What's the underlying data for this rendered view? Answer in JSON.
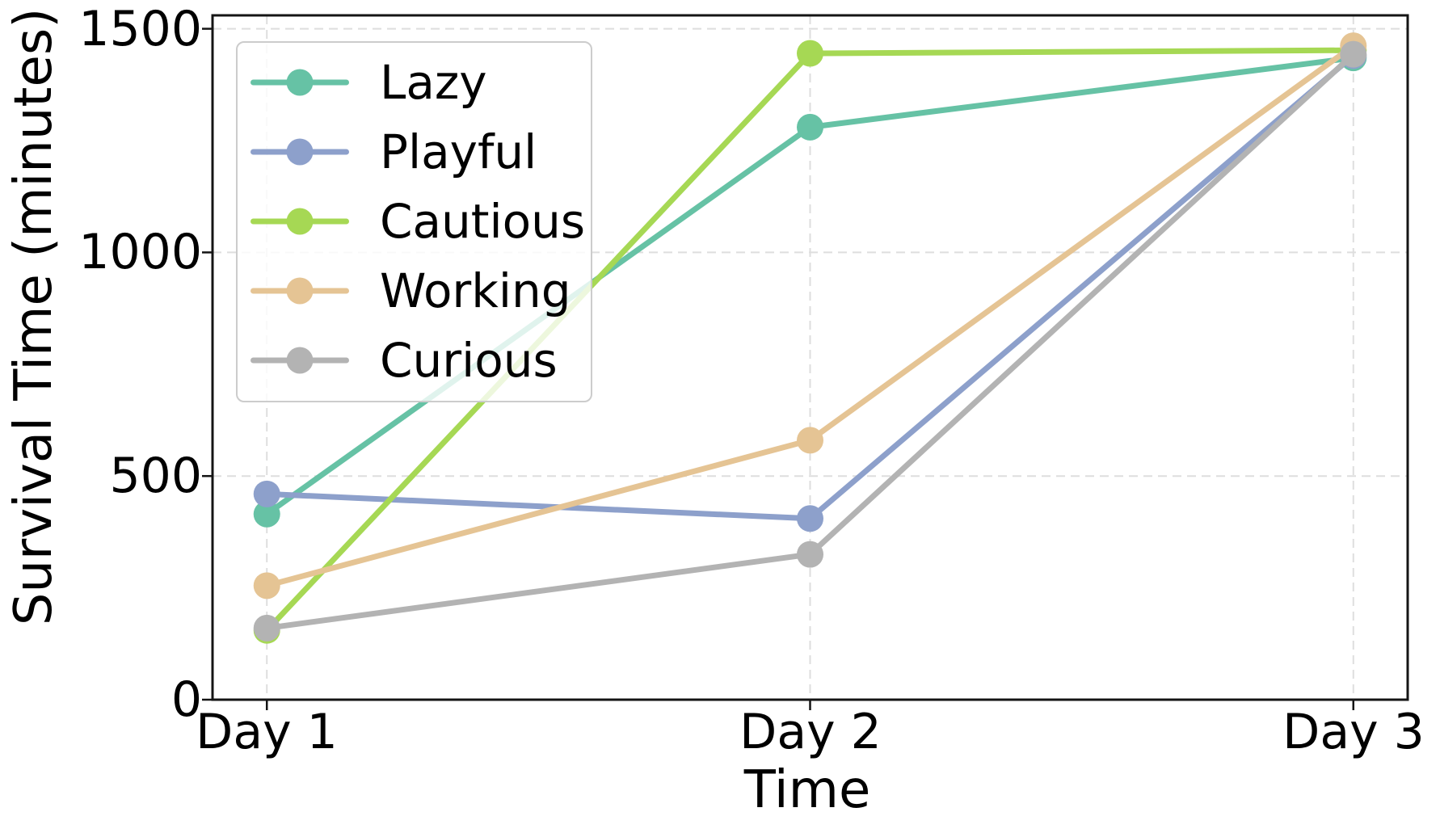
{
  "chart_data": {
    "type": "line",
    "title": "",
    "xlabel": "Time",
    "ylabel": "Survival Time (minutes)",
    "categories": [
      "Day 1",
      "Day 2",
      "Day 3"
    ],
    "series": [
      {
        "name": "Lazy",
        "color": "#66c2a5",
        "values": [
          415,
          1280,
          1435
        ]
      },
      {
        "name": "Playful",
        "color": "#8da0cb",
        "values": [
          460,
          405,
          1440
        ]
      },
      {
        "name": "Cautious",
        "color": "#a6d854",
        "values": [
          155,
          1445,
          1452
        ]
      },
      {
        "name": "Working",
        "color": "#e5c494",
        "values": [
          255,
          580,
          1462
        ]
      },
      {
        "name": "Curious",
        "color": "#b3b3b3",
        "values": [
          160,
          325,
          1443
        ]
      }
    ],
    "yticks": [
      "0",
      "500",
      "1000",
      "1500"
    ],
    "ytick_values": [
      0,
      500,
      1000,
      1500
    ],
    "ylim": [
      0,
      1530
    ],
    "xlim": [
      -0.1,
      2.1
    ],
    "grid": true,
    "grid_style": "dashed",
    "grid_color": "#dedede",
    "axis_color": "#141414",
    "legend_position": "upper left",
    "marker": "circle",
    "line_width": 7,
    "marker_radius": 16.5
  }
}
